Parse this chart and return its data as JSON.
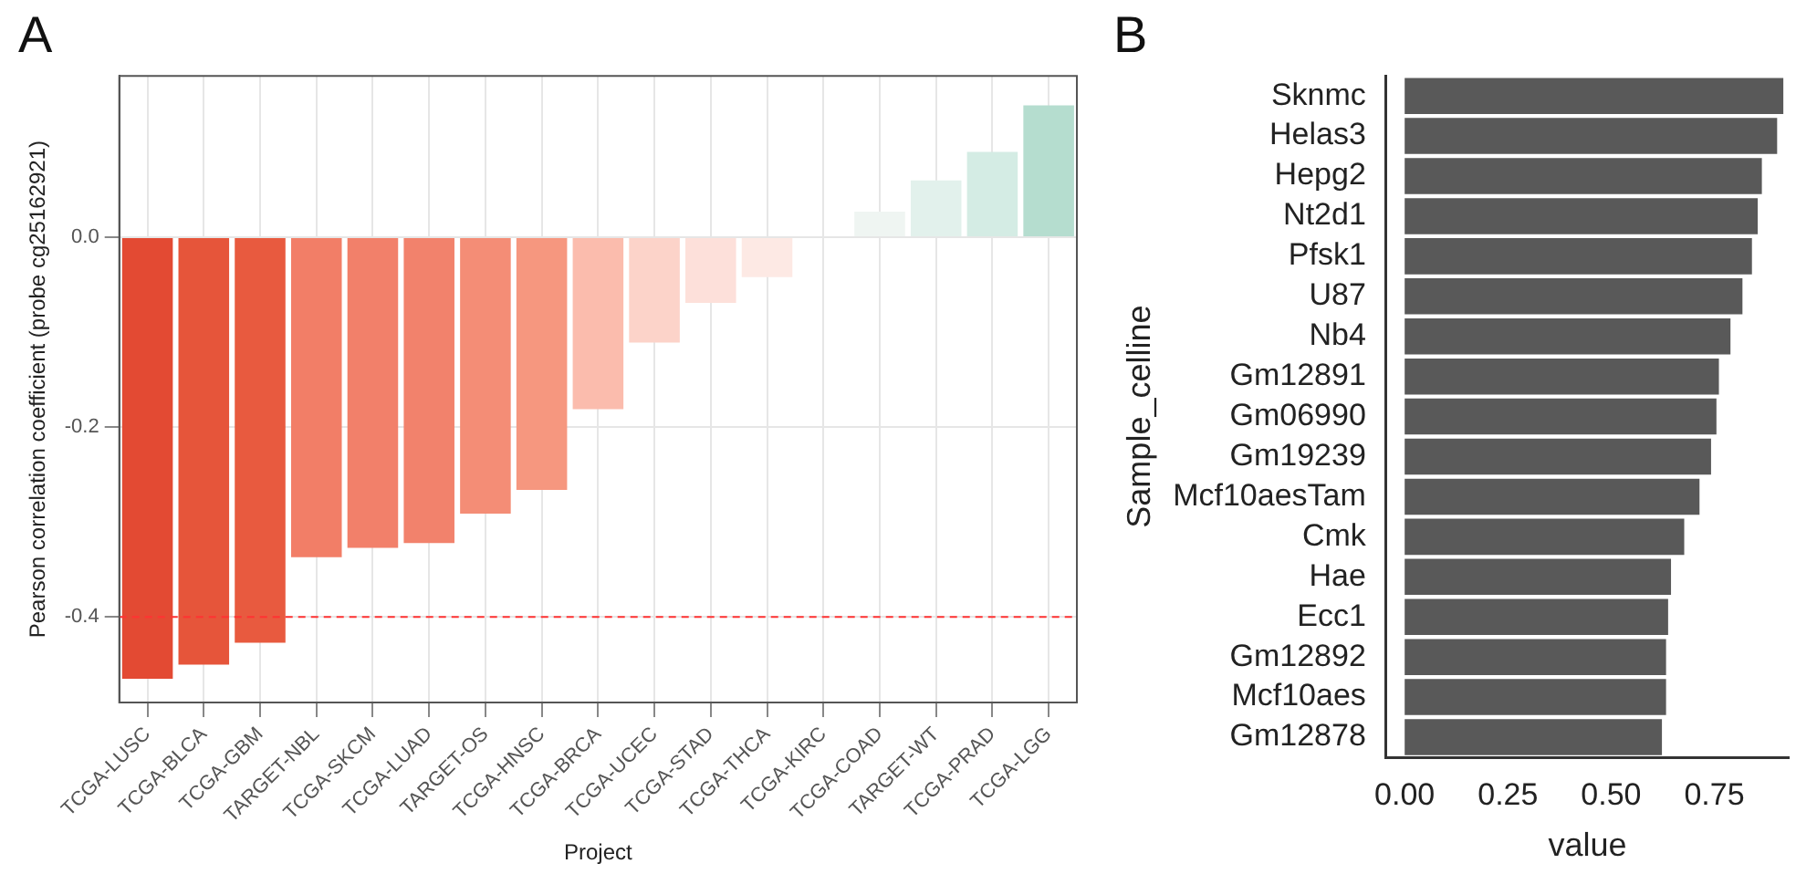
{
  "chart_data": [
    {
      "type": "bar",
      "title": "A",
      "xlabel": "Project",
      "ylabel": "Pearson correlation coefficient (probe cg25162921)",
      "categories": [
        "TCGA-LUSC",
        "TCGA-BLCA",
        "TCGA-GBM",
        "TARGET-NBL",
        "TCGA-SKCM",
        "TCGA-LUAD",
        "TARGET-OS",
        "TCGA-HNSC",
        "TCGA-BRCA",
        "TCGA-UCEC",
        "TCGA-STAD",
        "TCGA-THCA",
        "TCGA-KIRC",
        "TCGA-COAD",
        "TARGET-WT",
        "TCGA-PRAD",
        "TCGA-LGG"
      ],
      "values": [
        -0.465,
        -0.45,
        -0.427,
        -0.337,
        -0.327,
        -0.322,
        -0.291,
        -0.266,
        -0.181,
        -0.111,
        -0.069,
        -0.042,
        null,
        0.027,
        0.06,
        0.09,
        0.139
      ],
      "colors": [
        "#e34a33",
        "#e6553a",
        "#e85a3f",
        "#f27e67",
        "#f2806a",
        "#f2826c",
        "#f48d76",
        "#f6977f",
        "#fbbcad",
        "#fcd3c9",
        "#fde0da",
        "#fde9e4",
        "#f8f8f8",
        "#eff5f2",
        "#e2f1ec",
        "#d4ece4",
        "#b5ddcf"
      ],
      "ylim": [
        -0.49,
        0.17
      ],
      "yticks": [
        -0.4,
        -0.2,
        {
          "value": 0,
          "label": "0.0"
        }
      ],
      "grid": true,
      "ref_lines": [
        {
          "axis": "y",
          "value": -0.4,
          "color": "#ff3333",
          "line_style": "dashed"
        }
      ]
    },
    {
      "type": "bar",
      "orientation": "horizontal",
      "title": "B",
      "xlabel": "value",
      "ylabel": "Sample_celline",
      "color": "#595959",
      "categories": [
        "Sknmc",
        "Helas3",
        "Hepg2",
        "Nt2d1",
        "Pfsk1",
        "U87",
        "Nb4",
        "Gm12891",
        "Gm06990",
        "Gm19239",
        "Mcf10aesTam",
        "Cmk",
        "Hae",
        "Ecc1",
        "Gm12892",
        "Mcf10aes",
        "Gm12878"
      ],
      "values": [
        0.917,
        0.902,
        0.865,
        0.855,
        0.841,
        0.818,
        0.789,
        0.761,
        0.755,
        0.742,
        0.714,
        0.677,
        0.645,
        0.638,
        0.633,
        0.633,
        0.623
      ],
      "xlim": [
        -0.045,
        0.93
      ],
      "xticks": [
        {
          "value": 0,
          "label": "0.00"
        },
        {
          "value": 0.25,
          "label": "0.25"
        },
        {
          "value": 0.5,
          "label": "0.50"
        },
        {
          "value": 0.75,
          "label": "0.75"
        }
      ],
      "grid": false
    }
  ]
}
